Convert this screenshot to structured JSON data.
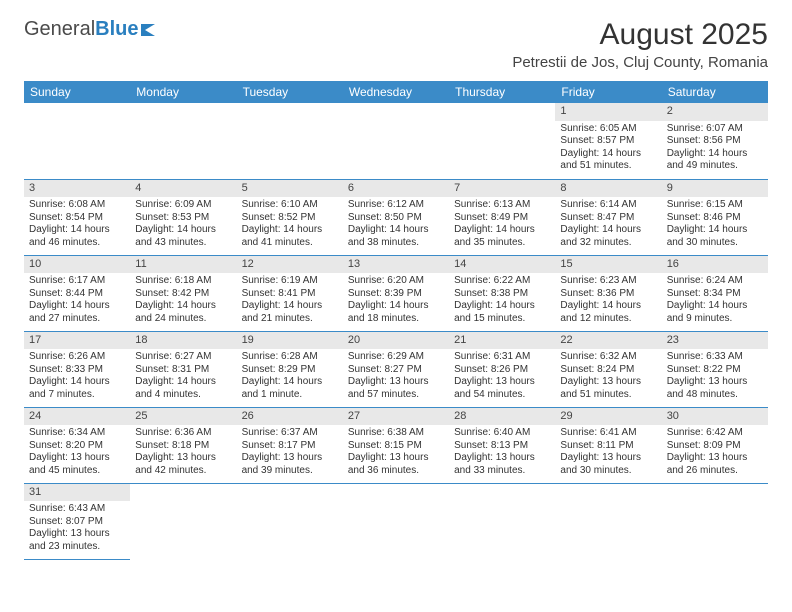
{
  "brand": {
    "part1": "General",
    "part2": "Blue"
  },
  "title": "August 2025",
  "location": "Petrestii de Jos, Cluj County, Romania",
  "colors": {
    "header_bg": "#3b8bc8",
    "header_text": "#ffffff",
    "daynum_bg": "#e8e8e8",
    "border": "#3b8bc8",
    "brand_accent": "#2a7fbf",
    "text": "#333333"
  },
  "weekdays": [
    "Sunday",
    "Monday",
    "Tuesday",
    "Wednesday",
    "Thursday",
    "Friday",
    "Saturday"
  ],
  "grid": [
    [
      null,
      null,
      null,
      null,
      null,
      {
        "n": "1",
        "sr": "Sunrise: 6:05 AM",
        "ss": "Sunset: 8:57 PM",
        "d1": "Daylight: 14 hours",
        "d2": "and 51 minutes."
      },
      {
        "n": "2",
        "sr": "Sunrise: 6:07 AM",
        "ss": "Sunset: 8:56 PM",
        "d1": "Daylight: 14 hours",
        "d2": "and 49 minutes."
      }
    ],
    [
      {
        "n": "3",
        "sr": "Sunrise: 6:08 AM",
        "ss": "Sunset: 8:54 PM",
        "d1": "Daylight: 14 hours",
        "d2": "and 46 minutes."
      },
      {
        "n": "4",
        "sr": "Sunrise: 6:09 AM",
        "ss": "Sunset: 8:53 PM",
        "d1": "Daylight: 14 hours",
        "d2": "and 43 minutes."
      },
      {
        "n": "5",
        "sr": "Sunrise: 6:10 AM",
        "ss": "Sunset: 8:52 PM",
        "d1": "Daylight: 14 hours",
        "d2": "and 41 minutes."
      },
      {
        "n": "6",
        "sr": "Sunrise: 6:12 AM",
        "ss": "Sunset: 8:50 PM",
        "d1": "Daylight: 14 hours",
        "d2": "and 38 minutes."
      },
      {
        "n": "7",
        "sr": "Sunrise: 6:13 AM",
        "ss": "Sunset: 8:49 PM",
        "d1": "Daylight: 14 hours",
        "d2": "and 35 minutes."
      },
      {
        "n": "8",
        "sr": "Sunrise: 6:14 AM",
        "ss": "Sunset: 8:47 PM",
        "d1": "Daylight: 14 hours",
        "d2": "and 32 minutes."
      },
      {
        "n": "9",
        "sr": "Sunrise: 6:15 AM",
        "ss": "Sunset: 8:46 PM",
        "d1": "Daylight: 14 hours",
        "d2": "and 30 minutes."
      }
    ],
    [
      {
        "n": "10",
        "sr": "Sunrise: 6:17 AM",
        "ss": "Sunset: 8:44 PM",
        "d1": "Daylight: 14 hours",
        "d2": "and 27 minutes."
      },
      {
        "n": "11",
        "sr": "Sunrise: 6:18 AM",
        "ss": "Sunset: 8:42 PM",
        "d1": "Daylight: 14 hours",
        "d2": "and 24 minutes."
      },
      {
        "n": "12",
        "sr": "Sunrise: 6:19 AM",
        "ss": "Sunset: 8:41 PM",
        "d1": "Daylight: 14 hours",
        "d2": "and 21 minutes."
      },
      {
        "n": "13",
        "sr": "Sunrise: 6:20 AM",
        "ss": "Sunset: 8:39 PM",
        "d1": "Daylight: 14 hours",
        "d2": "and 18 minutes."
      },
      {
        "n": "14",
        "sr": "Sunrise: 6:22 AM",
        "ss": "Sunset: 8:38 PM",
        "d1": "Daylight: 14 hours",
        "d2": "and 15 minutes."
      },
      {
        "n": "15",
        "sr": "Sunrise: 6:23 AM",
        "ss": "Sunset: 8:36 PM",
        "d1": "Daylight: 14 hours",
        "d2": "and 12 minutes."
      },
      {
        "n": "16",
        "sr": "Sunrise: 6:24 AM",
        "ss": "Sunset: 8:34 PM",
        "d1": "Daylight: 14 hours",
        "d2": "and 9 minutes."
      }
    ],
    [
      {
        "n": "17",
        "sr": "Sunrise: 6:26 AM",
        "ss": "Sunset: 8:33 PM",
        "d1": "Daylight: 14 hours",
        "d2": "and 7 minutes."
      },
      {
        "n": "18",
        "sr": "Sunrise: 6:27 AM",
        "ss": "Sunset: 8:31 PM",
        "d1": "Daylight: 14 hours",
        "d2": "and 4 minutes."
      },
      {
        "n": "19",
        "sr": "Sunrise: 6:28 AM",
        "ss": "Sunset: 8:29 PM",
        "d1": "Daylight: 14 hours",
        "d2": "and 1 minute."
      },
      {
        "n": "20",
        "sr": "Sunrise: 6:29 AM",
        "ss": "Sunset: 8:27 PM",
        "d1": "Daylight: 13 hours",
        "d2": "and 57 minutes."
      },
      {
        "n": "21",
        "sr": "Sunrise: 6:31 AM",
        "ss": "Sunset: 8:26 PM",
        "d1": "Daylight: 13 hours",
        "d2": "and 54 minutes."
      },
      {
        "n": "22",
        "sr": "Sunrise: 6:32 AM",
        "ss": "Sunset: 8:24 PM",
        "d1": "Daylight: 13 hours",
        "d2": "and 51 minutes."
      },
      {
        "n": "23",
        "sr": "Sunrise: 6:33 AM",
        "ss": "Sunset: 8:22 PM",
        "d1": "Daylight: 13 hours",
        "d2": "and 48 minutes."
      }
    ],
    [
      {
        "n": "24",
        "sr": "Sunrise: 6:34 AM",
        "ss": "Sunset: 8:20 PM",
        "d1": "Daylight: 13 hours",
        "d2": "and 45 minutes."
      },
      {
        "n": "25",
        "sr": "Sunrise: 6:36 AM",
        "ss": "Sunset: 8:18 PM",
        "d1": "Daylight: 13 hours",
        "d2": "and 42 minutes."
      },
      {
        "n": "26",
        "sr": "Sunrise: 6:37 AM",
        "ss": "Sunset: 8:17 PM",
        "d1": "Daylight: 13 hours",
        "d2": "and 39 minutes."
      },
      {
        "n": "27",
        "sr": "Sunrise: 6:38 AM",
        "ss": "Sunset: 8:15 PM",
        "d1": "Daylight: 13 hours",
        "d2": "and 36 minutes."
      },
      {
        "n": "28",
        "sr": "Sunrise: 6:40 AM",
        "ss": "Sunset: 8:13 PM",
        "d1": "Daylight: 13 hours",
        "d2": "and 33 minutes."
      },
      {
        "n": "29",
        "sr": "Sunrise: 6:41 AM",
        "ss": "Sunset: 8:11 PM",
        "d1": "Daylight: 13 hours",
        "d2": "and 30 minutes."
      },
      {
        "n": "30",
        "sr": "Sunrise: 6:42 AM",
        "ss": "Sunset: 8:09 PM",
        "d1": "Daylight: 13 hours",
        "d2": "and 26 minutes."
      }
    ],
    [
      {
        "n": "31",
        "sr": "Sunrise: 6:43 AM",
        "ss": "Sunset: 8:07 PM",
        "d1": "Daylight: 13 hours",
        "d2": "and 23 minutes."
      },
      null,
      null,
      null,
      null,
      null,
      null
    ]
  ]
}
